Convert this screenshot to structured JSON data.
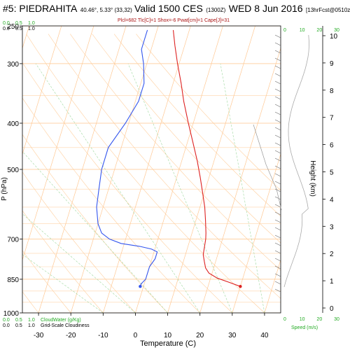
{
  "header": {
    "station": "#5: PIEDRAHITA",
    "coords": "40.46°, 5.33° (33,32)",
    "valid": "Valid 1500 CES",
    "utc": "(1300Z)",
    "date": "WED 8 Jun 2016",
    "fcst": "[13hrFcst@0510z]",
    "indices": "Plcl=682 Tlc[C]=1 Shox=-6 Pwat[cm]=1 Cape[J]=31"
  },
  "chart_data": {
    "type": "line",
    "title": "#5: PIEDRAHITA",
    "xlabel": "Temperature (C)",
    "ylabel": "P (hPa)",
    "y2label": "Height (km)",
    "xlim": [
      -35,
      45
    ],
    "x_ticks": [
      -30,
      -20,
      -10,
      0,
      10,
      20,
      30,
      40
    ],
    "y_ticks": [
      250,
      300,
      400,
      500,
      700,
      850,
      1000
    ],
    "height_ticks": [
      0,
      1,
      2,
      3,
      4,
      5,
      6,
      7,
      8,
      9,
      10
    ],
    "ylim": [
      250,
      1000
    ],
    "pressure_scale": "log",
    "temperature_profile": {
      "color": "#dd2222",
      "p": [
        880,
        862,
        845,
        825,
        805,
        780,
        755,
        730,
        700,
        680,
        640,
        600,
        560,
        520,
        480,
        440,
        400,
        360,
        330,
        300,
        275,
        255
      ],
      "t": [
        30,
        26,
        22,
        19,
        17.5,
        16.5,
        15.5,
        15.2,
        14.8,
        14.3,
        13.0,
        11.5,
        9.5,
        7.3,
        4.8,
        1.8,
        -1.5,
        -5.0,
        -7.5,
        -10.5,
        -13,
        -15
      ]
    },
    "dewpoint_profile": {
      "color": "#3355ee",
      "p": [
        880,
        870,
        850,
        830,
        800,
        770,
        745,
        735,
        725,
        715,
        700,
        680,
        650,
        600,
        550,
        500,
        450,
        400,
        360,
        330,
        300,
        280,
        260,
        255
      ],
      "t": [
        -1,
        -1,
        0,
        0,
        0,
        1,
        1,
        -1,
        -5,
        -11,
        -15,
        -18,
        -20,
        -22,
        -23,
        -24,
        -24,
        -21,
        -19,
        -19,
        -21,
        -23,
        -23,
        -23
      ]
    },
    "surface_points": [
      {
        "color": "#dd2222",
        "p": 880,
        "t": 30
      },
      {
        "color": "#3355ee",
        "p": 880,
        "t": -1
      }
    ],
    "cloud_water_axis": {
      "label": "CloudWater (g/Kg)",
      "ticks": [
        "0.0",
        "0.5",
        "1.0"
      ],
      "color": "#22aa22"
    },
    "cloudiness_axis": {
      "label": "Grid-Scale Cloudiness",
      "ticks": [
        "0.0",
        "0.5",
        "1.0"
      ],
      "color": "#000000"
    },
    "wind_speed_axis": {
      "label": "Speed (m/s)",
      "ticks": [
        "0",
        "10",
        "20",
        "30"
      ],
      "top_ticks": [
        "0",
        "10",
        "20",
        "30"
      ],
      "color": "#22aa22"
    },
    "grid": true
  }
}
